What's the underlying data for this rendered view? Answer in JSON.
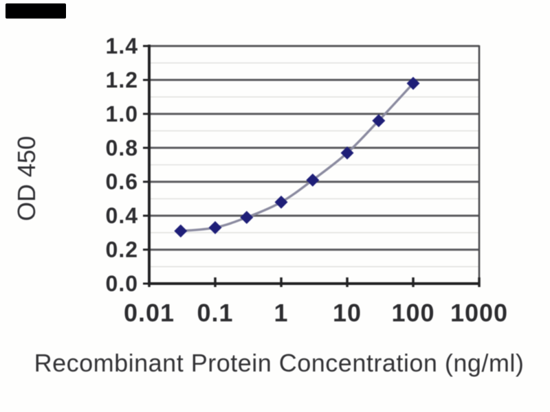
{
  "figure": {
    "kind": "elisa-standard-curve",
    "background": "#ffffff",
    "watermark_redaction": {
      "visible": true,
      "color": "#000000"
    }
  },
  "chart_data": {
    "type": "line",
    "x_scale": "log",
    "x": [
      0.03,
      0.1,
      0.3,
      1,
      3,
      10,
      30,
      100
    ],
    "series": [
      {
        "name": "OD 450",
        "values": [
          0.31,
          0.33,
          0.39,
          0.48,
          0.61,
          0.77,
          0.96,
          1.18
        ]
      }
    ],
    "title": "",
    "xlabel": "Recombinant Protein Concentration (ng/ml)",
    "ylabel": "OD 450",
    "xlim": [
      0.01,
      1000
    ],
    "ylim": [
      0,
      1.4
    ],
    "x_tick_values": [
      0.01,
      0.1,
      1,
      10,
      100,
      1000
    ],
    "x_tick_labels": [
      "0.01",
      "0.1",
      "1",
      "10",
      "100",
      "1000"
    ],
    "y_tick_values": [
      0.0,
      0.2,
      0.4,
      0.6,
      0.8,
      1.0,
      1.2,
      1.4
    ],
    "y_tick_labels": [
      "0.0",
      "0.2",
      "0.4",
      "0.6",
      "0.8",
      "1.0",
      "1.2",
      "1.4"
    ],
    "grid": "horizontal major with faint minor lines",
    "y_minor_step": 0.1,
    "legend_position": "none",
    "marker": "diamond",
    "line_style": "smooth",
    "colors": {
      "marker": "#1f1f78",
      "line": "#8b8ba0",
      "grid_major": "#59595c",
      "grid_minor": "#e2e2e0",
      "axis": "#222224",
      "plot_border": "#4b4b4e",
      "tick_text": "#2d2d30",
      "title_text": "#333336"
    }
  }
}
